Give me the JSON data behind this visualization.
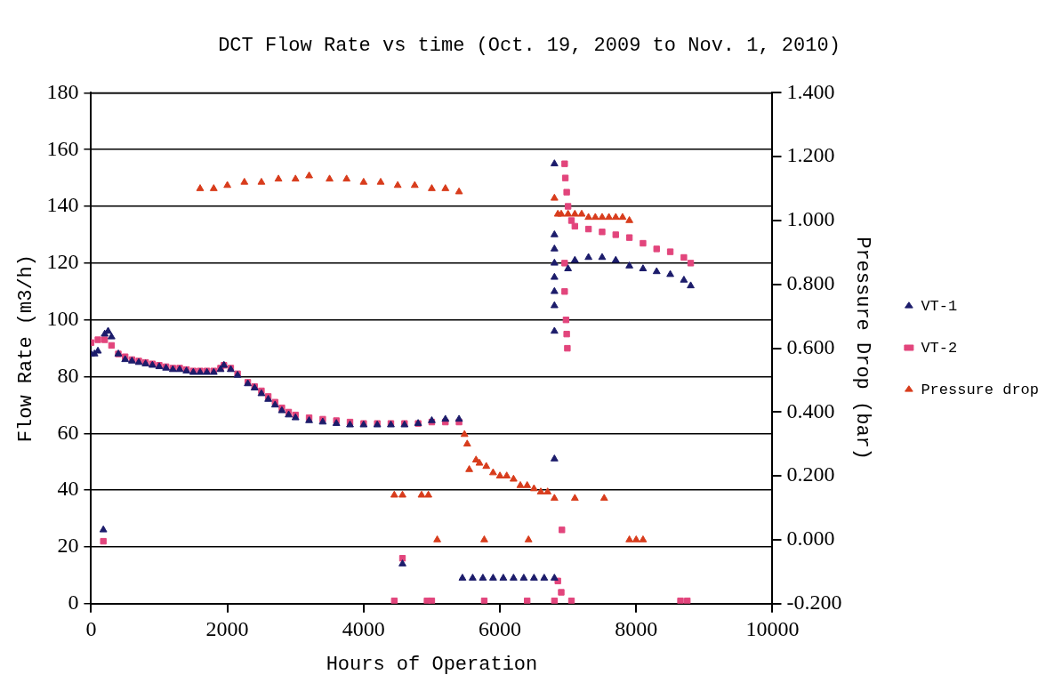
{
  "chart_data": {
    "type": "scatter",
    "title": "DCT Flow Rate vs time (Oct. 19, 2009 to Nov. 1, 2010)",
    "xlabel": "Hours of Operation",
    "ylabel": "Flow Rate (m3/h)",
    "y2label": "Pressure Drop (bar)",
    "xlim": [
      0,
      10000
    ],
    "xticks": [
      0,
      2000,
      4000,
      6000,
      8000,
      10000
    ],
    "ylim": [
      0,
      180
    ],
    "yticks": [
      0,
      20,
      40,
      60,
      80,
      100,
      120,
      140,
      160,
      180
    ],
    "y2lim": [
      -0.2,
      1.4
    ],
    "y2ticks": [
      {
        "value": -0.2,
        "label": "-0.200"
      },
      {
        "value": 0,
        "label": "0.000"
      },
      {
        "value": 0.2,
        "label": "0.200"
      },
      {
        "value": 0.4,
        "label": "0.400"
      },
      {
        "value": 0.6,
        "label": "0.600"
      },
      {
        "value": 0.8,
        "label": "0.800"
      },
      {
        "value": 1,
        "label": "1.000"
      },
      {
        "value": 1.2,
        "label": "1.200"
      },
      {
        "value": 1.4,
        "label": "1.400"
      }
    ],
    "grid": "y",
    "legend": "right",
    "series": [
      {
        "name": "VT-1",
        "color": "#1c1c6b",
        "marker": "triangle",
        "x": [
          0,
          50,
          100,
          200,
          250,
          300,
          400,
          500,
          600,
          700,
          800,
          900,
          1000,
          1100,
          1200,
          1300,
          1400,
          1500,
          1600,
          1700,
          1800,
          1900,
          1950,
          2050,
          2150,
          2300,
          2400,
          2500,
          2600,
          2700,
          2800,
          2900,
          3000,
          3200,
          3400,
          3600,
          3800,
          4000,
          4200,
          4400,
          4600,
          4800,
          5000,
          5200,
          5400,
          180,
          4570,
          5450,
          5600,
          5750,
          5900,
          6050,
          6200,
          6350,
          6500,
          6650,
          6800,
          6800,
          6800,
          6800,
          6800,
          6800,
          6800,
          6800,
          6800,
          6800,
          7000,
          7100,
          7300,
          7500,
          7700,
          7900,
          8100,
          8300,
          8500,
          8700,
          8800
        ],
        "values": [
          88,
          88,
          89,
          95,
          96,
          94,
          88,
          86,
          85.5,
          85,
          84.5,
          84,
          83.5,
          83,
          82.5,
          82.5,
          82,
          81.5,
          81.5,
          81.5,
          81.5,
          82.5,
          84,
          82.5,
          80.5,
          77.5,
          76,
          74,
          72,
          70,
          68,
          66.5,
          65.5,
          64.5,
          64,
          63.5,
          63,
          63,
          63,
          63,
          63,
          63.5,
          64.5,
          65,
          65,
          26,
          14,
          9,
          9,
          9,
          9,
          9,
          9,
          9,
          9,
          9,
          9,
          155,
          130,
          125,
          120,
          115,
          110,
          105,
          96,
          51,
          118,
          121,
          122,
          122,
          121,
          119,
          118,
          117,
          116,
          114,
          112
        ]
      },
      {
        "name": "VT-2",
        "color": "#e2457c",
        "marker": "square",
        "x": [
          0,
          100,
          200,
          300,
          400,
          500,
          600,
          700,
          800,
          900,
          1000,
          1100,
          1200,
          1300,
          1400,
          1500,
          1600,
          1700,
          1800,
          1900,
          1950,
          2050,
          2150,
          2300,
          2400,
          2500,
          2600,
          2700,
          2800,
          2900,
          3000,
          3200,
          3400,
          3600,
          3800,
          4000,
          4200,
          4400,
          4600,
          4800,
          5000,
          5200,
          5400,
          180,
          4570,
          4450,
          4930,
          5000,
          5770,
          6400,
          6800,
          6850,
          6900,
          6910,
          7050,
          8650,
          8750,
          6950,
          6960,
          6980,
          7000,
          7050,
          7100,
          7300,
          7500,
          7700,
          7900,
          8100,
          8300,
          8500,
          8700,
          8800,
          6950,
          6950,
          6970,
          6980,
          6990
        ],
        "values": [
          92,
          93,
          93,
          91,
          88,
          87,
          86,
          85.5,
          85,
          84.5,
          84,
          83.5,
          83,
          83,
          82.5,
          82,
          82,
          82,
          82,
          83,
          84,
          83,
          81,
          78,
          76.5,
          75,
          73,
          71,
          69,
          67.5,
          66.5,
          65.5,
          65,
          64.5,
          64,
          63.5,
          63.5,
          63.5,
          63.5,
          63.5,
          64,
          64,
          64,
          22,
          16,
          1,
          1,
          1,
          1,
          1,
          1,
          8,
          4,
          26,
          1,
          1,
          1,
          155,
          150,
          145,
          140,
          135,
          133,
          132,
          131,
          130,
          129,
          127,
          125,
          124,
          122,
          120,
          120,
          110,
          100,
          95,
          90
        ]
      },
      {
        "name": "Pressure drop",
        "color": "#d83c1c",
        "marker": "triangle",
        "axis": "y2",
        "x": [
          1600,
          1800,
          2000,
          2250,
          2500,
          2750,
          3000,
          3200,
          3500,
          3750,
          4000,
          4250,
          4500,
          4750,
          5000,
          5200,
          5400,
          5480,
          5520,
          5550,
          5650,
          5700,
          5800,
          5900,
          6000,
          6100,
          6200,
          6300,
          6400,
          6500,
          6600,
          6700,
          6800,
          6800,
          6850,
          6900,
          7000,
          7100,
          7200,
          7300,
          7400,
          7500,
          7600,
          7700,
          7800,
          7900,
          4450,
          4570,
          4850,
          4950,
          5080,
          5770,
          6420,
          7100,
          7530,
          7900,
          8000,
          8100
        ],
        "values": [
          1.1,
          1.1,
          1.11,
          1.12,
          1.12,
          1.13,
          1.13,
          1.14,
          1.13,
          1.13,
          1.12,
          1.12,
          1.11,
          1.11,
          1.1,
          1.1,
          1.09,
          0.33,
          0.3,
          0.22,
          0.25,
          0.24,
          0.23,
          0.21,
          0.2,
          0.2,
          0.19,
          0.17,
          0.17,
          0.16,
          0.15,
          0.15,
          0.13,
          1.07,
          1.02,
          1.02,
          1.02,
          1.02,
          1.02,
          1.01,
          1.01,
          1.01,
          1.01,
          1.01,
          1.01,
          1.0,
          0.14,
          0.14,
          0.14,
          0.14,
          0.0,
          0.0,
          0.0,
          0.13,
          0.13,
          0.0,
          0.0,
          0.0
        ]
      }
    ]
  }
}
